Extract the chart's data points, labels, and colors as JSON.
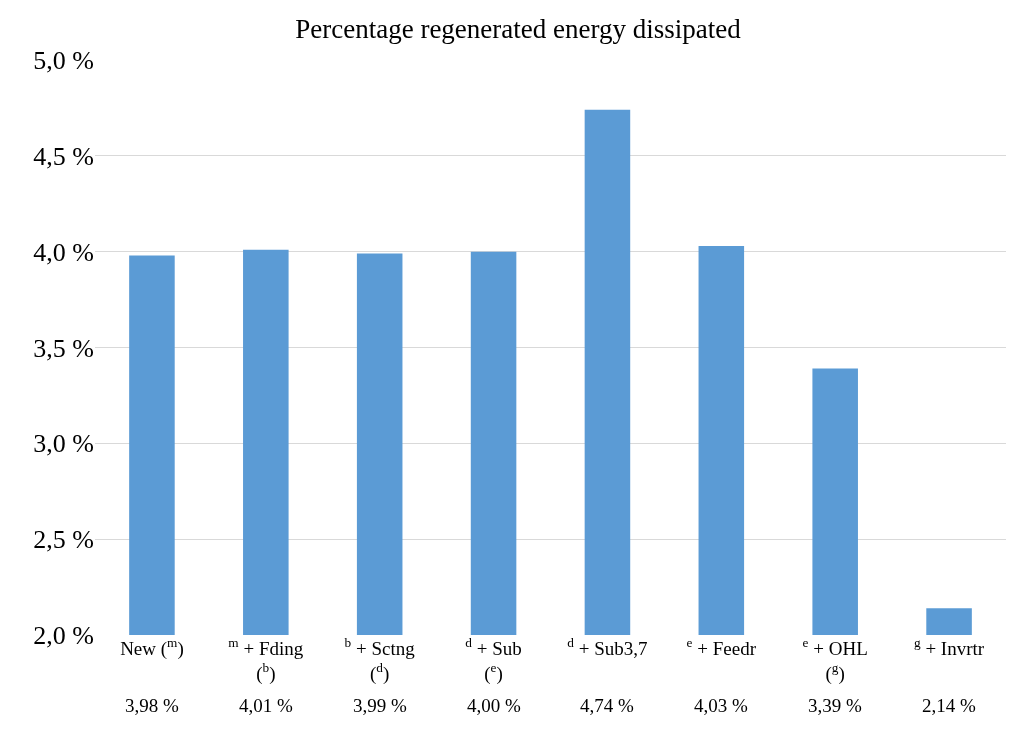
{
  "chart_data": {
    "type": "bar",
    "title": "Percentage regenerated energy dissipated",
    "categories": [
      "New ($^{m}$)",
      "$^{m}$ + Fding\n($^{b}$)",
      "$^{b}$ + Sctng\n($^{d}$)",
      "$^{d}$ + Sub\n($^{e}$)",
      "$^{d}$ + Sub3,7",
      "$^{e}$ + Feedr",
      "$^{e}$ + OHL\n($^{g}$)",
      "$^{g}$ + Invrtr"
    ],
    "values": [
      3.98,
      4.01,
      3.99,
      4.0,
      4.74,
      4.03,
      3.39,
      2.14
    ],
    "value_labels": [
      "3,98 %",
      "4,01 %",
      "3,99 %",
      "4,00 %",
      "4,74 %",
      "4,03 %",
      "3,39 %",
      "2,14 %"
    ],
    "color": "#5b9bd5",
    "ylim": [
      2.0,
      5.0
    ],
    "yticks": [
      {
        "value": 2.0,
        "label": "2,0 %"
      },
      {
        "value": 2.5,
        "label": "2,5 %"
      },
      {
        "value": 3.0,
        "label": "3,0 %"
      },
      {
        "value": 3.5,
        "label": "3,5 %"
      },
      {
        "value": 4.0,
        "label": "4,0 %"
      },
      {
        "value": 4.5,
        "label": "4,5 %"
      },
      {
        "value": 5.0,
        "label": "5,0 %"
      }
    ],
    "grid": "y",
    "legend": false
  }
}
